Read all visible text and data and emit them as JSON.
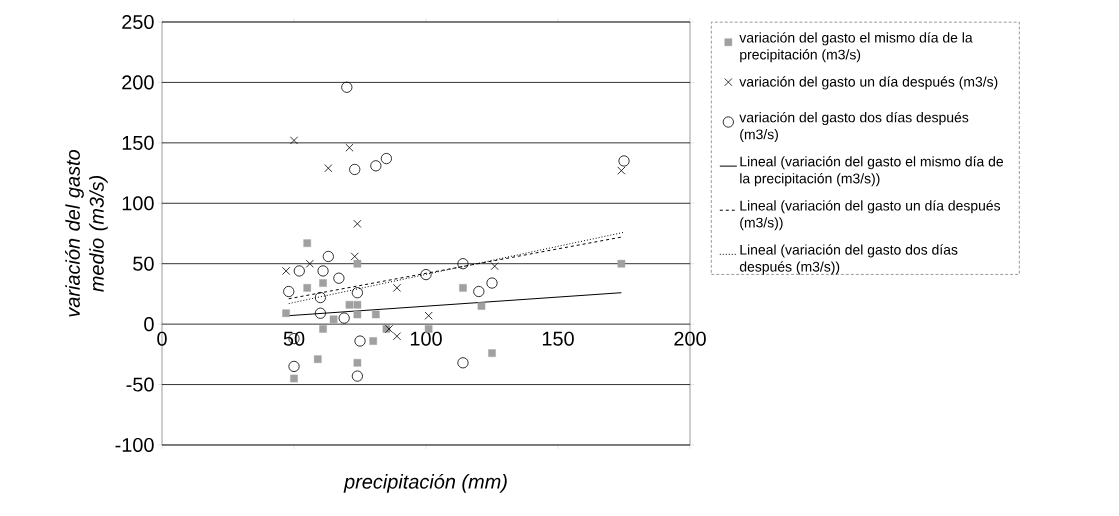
{
  "chart_data": {
    "type": "scatter",
    "xlabel": "precipitación (mm)",
    "ylabel": "variación del gasto medio (m3/s)",
    "xlim": [
      0,
      200
    ],
    "xticks": [
      0,
      50,
      100,
      150,
      200
    ],
    "ylim": [
      -100,
      250
    ],
    "yticks": [
      -100,
      -50,
      0,
      50,
      100,
      150,
      200,
      250
    ],
    "grid": "y",
    "legend": "right",
    "series": [
      {
        "name": "variación del gasto el mismo día de la precipitación (m3/s)",
        "marker": "square",
        "color": "#a0a0a0",
        "x": [
          55,
          61,
          47,
          74,
          74,
          81,
          74,
          65,
          61,
          85,
          80,
          101,
          59,
          74,
          50,
          71,
          55,
          174,
          114,
          121,
          125
        ],
        "values": [
          30,
          34,
          9,
          50,
          8,
          8,
          16,
          4,
          -4,
          -4,
          -14,
          -4,
          -29,
          -32,
          -45,
          16,
          67,
          50,
          30,
          15,
          -24
        ]
      },
      {
        "name": "variación del gasto un día después (m3/s)",
        "marker": "cross",
        "color": "#000000",
        "x": [
          50,
          71,
          63,
          74,
          73,
          56,
          47,
          89,
          101,
          89,
          86,
          126,
          174
        ],
        "values": [
          152,
          146,
          129,
          83,
          56,
          50,
          44,
          30,
          7,
          -10,
          -4,
          48,
          127
        ]
      },
      {
        "name": "variación del gasto dos días después (m3/s)",
        "marker": "circle",
        "color": "#000000",
        "x": [
          70,
          73,
          81,
          85,
          63,
          61,
          67,
          52,
          48,
          60,
          60,
          69,
          74,
          50,
          50,
          74,
          75,
          100,
          114,
          125,
          120,
          114,
          175
        ],
        "values": [
          196,
          128,
          131,
          137,
          56,
          44,
          38,
          44,
          27,
          22,
          9,
          5,
          26,
          -12,
          -35,
          -43,
          -14,
          41,
          50,
          34,
          27,
          -32,
          135
        ]
      },
      {
        "name": "Lineal (variación del gasto el mismo día de la precipitación (m3/s))",
        "type": "line",
        "marker": "none",
        "line_style": "solid",
        "color": "#000000",
        "x": [
          48,
          174
        ],
        "values": [
          7,
          26
        ]
      },
      {
        "name": "Lineal (variación del gasto un día después (m3/s))",
        "type": "line",
        "marker": "none",
        "line_style": "dashed",
        "color": "#000000",
        "x": [
          48,
          174
        ],
        "values": [
          21,
          72
        ]
      },
      {
        "name": "Lineal (variación del gasto dos días después (m3/s))",
        "type": "line",
        "marker": "none",
        "line_style": "dotted",
        "color": "#000000",
        "x": [
          48,
          175
        ],
        "values": [
          17,
          76
        ]
      }
    ]
  }
}
